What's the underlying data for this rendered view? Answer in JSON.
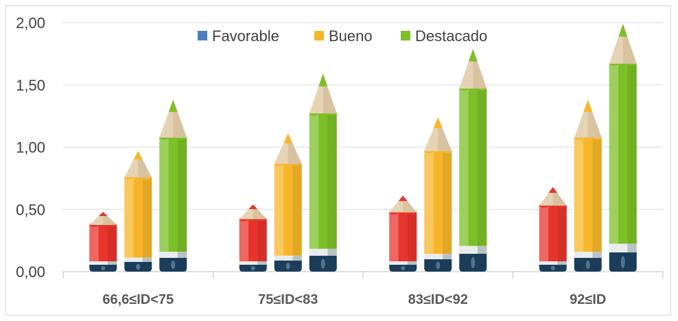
{
  "chart_data": {
    "type": "bar",
    "categories": [
      "66,6≤ID<75",
      "75≤ID<83",
      "83≤ID<92",
      "92≤ID"
    ],
    "series": [
      {
        "name": "Favorable",
        "values": [
          0.48,
          0.54,
          0.61,
          0.68
        ],
        "color": "#e8352c",
        "legend_color": "#4a7ec2"
      },
      {
        "name": "Bueno",
        "values": [
          0.97,
          1.11,
          1.24,
          1.38
        ],
        "color": "#f7b62a",
        "legend_color": "#f7b62a"
      },
      {
        "name": "Destacado",
        "values": [
          1.38,
          1.59,
          1.79,
          1.99
        ],
        "color": "#7cbf27",
        "legend_color": "#7cbf27"
      }
    ],
    "y_ticks": [
      "0,00",
      "0,50",
      "1,00",
      "1,50",
      "2,00"
    ],
    "ylim": [
      0,
      2.0
    ],
    "grid": true,
    "legend_position": "top"
  }
}
